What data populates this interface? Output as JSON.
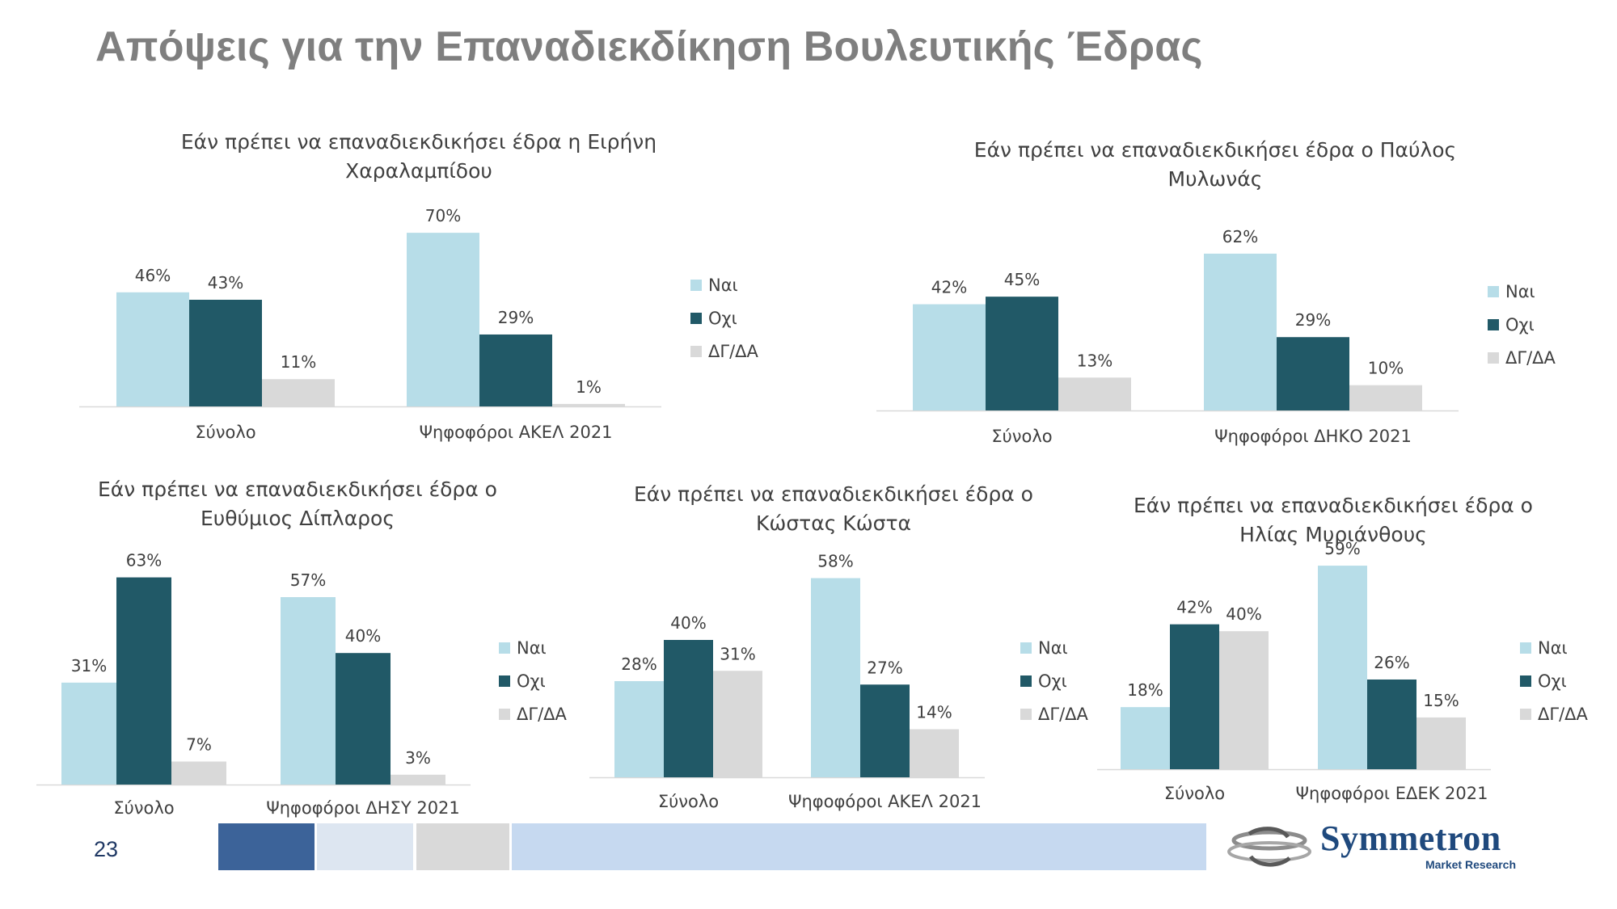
{
  "page": {
    "title": "Απόψεις για την Επαναδιεκδίκηση Βουλευτικής Έδρας",
    "page_number": "23",
    "logo_name": "Symmetron",
    "logo_sub": "Market Research"
  },
  "colors": {
    "nai": "#b7dde8",
    "ochi": "#215967",
    "dg": "#d9d9d9",
    "title_gray": "#7f7f7f",
    "footer_dark": "#3c6399",
    "footer_light": "#dde6f1",
    "footer_gray": "#d9d9d9",
    "footer_pale": "#c6d9f0"
  },
  "chart_data": [
    {
      "type": "bar",
      "title_lines": [
        "Εάν πρέπει να επαναδιεκδικήσει έδρα η Ειρήνη",
        "Χαραλαμπίδου"
      ],
      "categories": [
        "Σύνολο",
        "Ψηφοφόροι ΑΚΕΛ 2021"
      ],
      "series": [
        {
          "name": "Ναι",
          "values": [
            46,
            70
          ]
        },
        {
          "name": "Οχι",
          "values": [
            43,
            29
          ]
        },
        {
          "name": "ΔΓ/ΔΑ",
          "values": [
            11,
            1
          ]
        }
      ],
      "value_suffix": "%",
      "ylim": [
        0,
        70
      ],
      "grid": false,
      "legend": "right"
    },
    {
      "type": "bar",
      "title_lines": [
        "Εάν πρέπει να επαναδιεκδικήσει έδρα ο Παύλος",
        "Μυλωνάς"
      ],
      "categories": [
        "Σύνολο",
        "Ψηφοφόροι ΔΗΚΟ 2021"
      ],
      "series": [
        {
          "name": "Ναι",
          "values": [
            42,
            62
          ]
        },
        {
          "name": "Οχι",
          "values": [
            45,
            29
          ]
        },
        {
          "name": "ΔΓ/ΔΑ",
          "values": [
            13,
            10
          ]
        }
      ],
      "value_suffix": "%",
      "ylim": [
        0,
        62
      ],
      "grid": false,
      "legend": "right"
    },
    {
      "type": "bar",
      "title_lines": [
        "Εάν πρέπει να επαναδιεκδικήσει έδρα ο",
        "Ευθύμιος Δίπλαρος"
      ],
      "categories": [
        "Σύνολο",
        "Ψηφοφόροι ΔΗΣΥ 2021"
      ],
      "series": [
        {
          "name": "Ναι",
          "values": [
            31,
            57
          ]
        },
        {
          "name": "Οχι",
          "values": [
            63,
            40
          ]
        },
        {
          "name": "ΔΓ/ΔΑ",
          "values": [
            7,
            3
          ]
        }
      ],
      "value_suffix": "%",
      "ylim": [
        0,
        63
      ],
      "grid": false,
      "legend": "right"
    },
    {
      "type": "bar",
      "title_lines": [
        "Εάν πρέπει να επαναδιεκδικήσει έδρα ο",
        "Κώστας Κώστα"
      ],
      "categories": [
        "Σύνολο",
        "Ψηφοφόροι ΑΚΕΛ 2021"
      ],
      "series": [
        {
          "name": "Ναι",
          "values": [
            28,
            58
          ]
        },
        {
          "name": "Οχι",
          "values": [
            40,
            27
          ]
        },
        {
          "name": "ΔΓ/ΔΑ",
          "values": [
            31,
            14
          ]
        }
      ],
      "value_suffix": "%",
      "ylim": [
        0,
        58
      ],
      "grid": false,
      "legend": "right"
    },
    {
      "type": "bar",
      "title_lines": [
        "Εάν πρέπει να επαναδιεκδικήσει έδρα ο",
        "Ηλίας Μυριάνθους"
      ],
      "categories": [
        "Σύνολο",
        "Ψηφοφόροι ΕΔΕΚ 2021"
      ],
      "series": [
        {
          "name": "Ναι",
          "values": [
            18,
            59
          ]
        },
        {
          "name": "Οχι",
          "values": [
            42,
            26
          ]
        },
        {
          "name": "ΔΓ/ΔΑ",
          "values": [
            40,
            15
          ]
        }
      ],
      "value_suffix": "%",
      "ylim": [
        0,
        59
      ],
      "grid": false,
      "legend": "right"
    }
  ]
}
